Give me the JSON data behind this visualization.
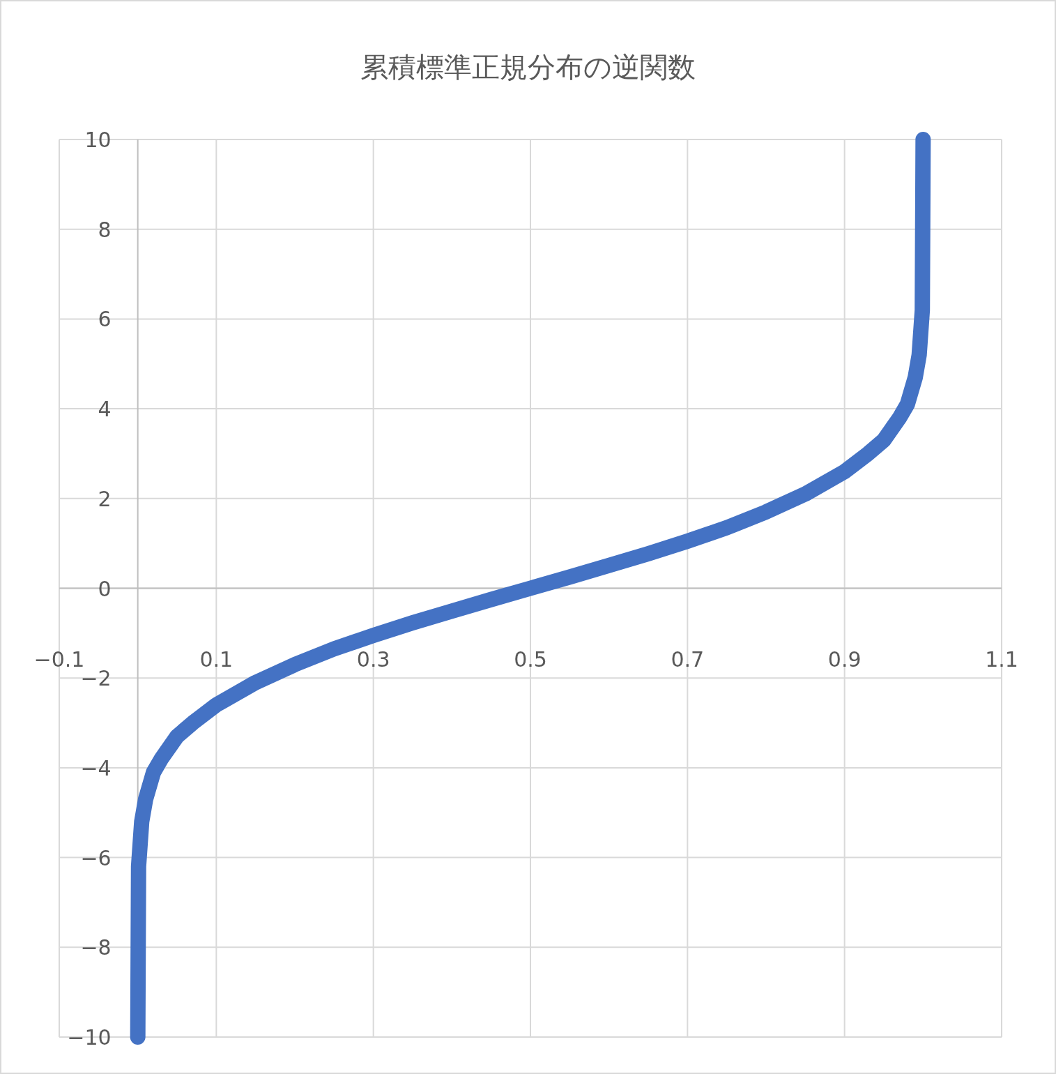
{
  "chart_data": {
    "type": "line",
    "title": "累積標準正規分布の逆関数",
    "x": [
      0,
      0.001,
      0.005,
      0.01,
      0.02,
      0.03,
      0.05,
      0.07,
      0.1,
      0.15,
      0.2,
      0.25,
      0.3,
      0.35,
      0.4,
      0.45,
      0.5,
      0.55,
      0.6,
      0.65,
      0.7,
      0.75,
      0.8,
      0.85,
      0.9,
      0.93,
      0.95,
      0.97,
      0.98,
      0.99,
      0.995,
      0.999,
      1
    ],
    "series": [
      {
        "color": "#4472c4",
        "values": [
          -10,
          -6.2,
          -5.2,
          -4.7,
          -4.1,
          -3.8,
          -3.3,
          -3.0,
          -2.6,
          -2.1,
          -1.7,
          -1.35,
          -1.05,
          -0.77,
          -0.51,
          -0.25,
          0,
          0.25,
          0.51,
          0.77,
          1.05,
          1.35,
          1.7,
          2.1,
          2.6,
          3.0,
          3.3,
          3.8,
          4.1,
          4.7,
          5.2,
          6.2,
          10
        ]
      }
    ],
    "xlim": [
      -0.1,
      1.1
    ],
    "ylim": [
      -10,
      10
    ],
    "xticks": [
      -0.1,
      0.1,
      0.3,
      0.5,
      0.7,
      0.9,
      1.1
    ],
    "yticks": [
      -10,
      -8,
      -6,
      -4,
      -2,
      0,
      2,
      4,
      6,
      8,
      10
    ],
    "grid": true,
    "marker": "none",
    "line_style": "solid"
  }
}
